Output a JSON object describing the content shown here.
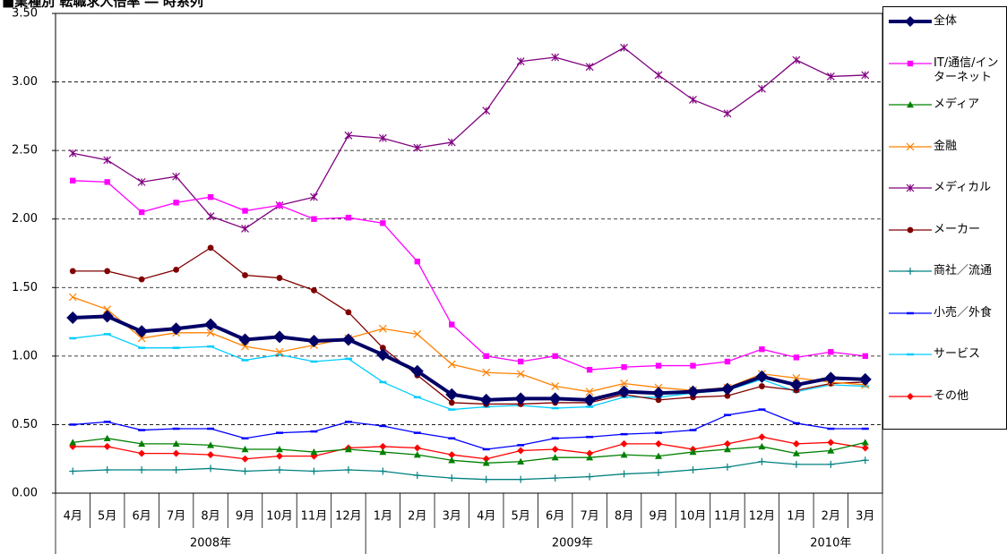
{
  "chart_data": {
    "type": "line",
    "title": "■業種別 転職求人倍率 ― 時系列",
    "categories": [
      "4月",
      "5月",
      "6月",
      "7月",
      "8月",
      "9月",
      "10月",
      "11月",
      "12月",
      "1月",
      "2月",
      "3月",
      "4月",
      "5月",
      "6月",
      "7月",
      "8月",
      "9月",
      "10月",
      "11月",
      "12月",
      "1月",
      "2月",
      "3月"
    ],
    "category_groups": [
      "2008年",
      null,
      null,
      null,
      null,
      null,
      null,
      null,
      null,
      "2009年",
      null,
      null,
      null,
      null,
      null,
      null,
      null,
      null,
      null,
      null,
      null,
      "2010年",
      null,
      null
    ],
    "ylim": [
      0,
      3.5
    ],
    "yticks": [
      {
        "value": 0,
        "label": "0.00"
      },
      {
        "value": 0.5,
        "label": "0.50"
      },
      {
        "value": 1,
        "label": "1.00"
      },
      {
        "value": 1.5,
        "label": "1.50"
      },
      {
        "value": 2,
        "label": "2.00"
      },
      {
        "value": 2.5,
        "label": "2.50"
      },
      {
        "value": 3,
        "label": "3.00"
      },
      {
        "value": 3.5,
        "label": "3.50"
      }
    ],
    "grid": true,
    "legend": "right",
    "series": [
      {
        "name": "全体",
        "color": "#000066",
        "marker": "diamond",
        "width": 4,
        "values": [
          1.28,
          1.29,
          1.18,
          1.2,
          1.23,
          1.12,
          1.14,
          1.11,
          1.12,
          1.01,
          0.89,
          0.72,
          0.68,
          0.69,
          0.69,
          0.68,
          0.74,
          0.73,
          0.74,
          0.76,
          0.85,
          0.79,
          0.84,
          0.83
        ]
      },
      {
        "name": "IT/通信/インターネット",
        "color": "#ff00ff",
        "marker": "square",
        "width": 1.3,
        "values": [
          2.28,
          2.27,
          2.05,
          2.12,
          2.16,
          2.06,
          2.1,
          2.0,
          2.01,
          1.97,
          1.69,
          1.23,
          1.0,
          0.96,
          1.0,
          0.9,
          0.92,
          0.93,
          0.93,
          0.96,
          1.05,
          0.99,
          1.03,
          1.0
        ]
      },
      {
        "name": "メディア",
        "color": "#008000",
        "marker": "triangle",
        "width": 1.3,
        "values": [
          0.37,
          0.4,
          0.36,
          0.36,
          0.35,
          0.32,
          0.32,
          0.3,
          0.32,
          0.3,
          0.28,
          0.24,
          0.22,
          0.23,
          0.26,
          0.26,
          0.28,
          0.27,
          0.3,
          0.32,
          0.34,
          0.29,
          0.31,
          0.37
        ]
      },
      {
        "name": "金融",
        "color": "#ff8000",
        "marker": "x",
        "width": 1.3,
        "values": [
          1.43,
          1.34,
          1.13,
          1.17,
          1.17,
          1.07,
          1.03,
          1.08,
          1.13,
          1.2,
          1.16,
          0.94,
          0.88,
          0.87,
          0.78,
          0.74,
          0.8,
          0.77,
          0.75,
          0.77,
          0.87,
          0.84,
          0.81,
          0.79
        ]
      },
      {
        "name": "メディカル",
        "color": "#800080",
        "marker": "star",
        "width": 1.3,
        "values": [
          2.48,
          2.43,
          2.27,
          2.31,
          2.02,
          1.93,
          2.1,
          2.16,
          2.61,
          2.59,
          2.52,
          2.56,
          2.79,
          3.15,
          3.18,
          3.11,
          3.25,
          3.05,
          2.87,
          2.77,
          2.95,
          3.16,
          3.04,
          3.05
        ]
      },
      {
        "name": "メーカー",
        "color": "#800000",
        "marker": "circle",
        "width": 1.3,
        "values": [
          1.62,
          1.62,
          1.56,
          1.63,
          1.79,
          1.59,
          1.57,
          1.48,
          1.32,
          1.06,
          0.86,
          0.66,
          0.65,
          0.65,
          0.66,
          0.66,
          0.72,
          0.68,
          0.7,
          0.71,
          0.78,
          0.75,
          0.8,
          0.81
        ]
      },
      {
        "name": "商社／流通",
        "color": "#008080",
        "marker": "plus",
        "width": 1.3,
        "values": [
          0.16,
          0.17,
          0.17,
          0.17,
          0.18,
          0.16,
          0.17,
          0.16,
          0.17,
          0.16,
          0.13,
          0.11,
          0.1,
          0.1,
          0.11,
          0.12,
          0.14,
          0.15,
          0.17,
          0.19,
          0.23,
          0.21,
          0.21,
          0.24
        ]
      },
      {
        "name": "小売／外食",
        "color": "#0000ff",
        "marker": "dash",
        "width": 1.3,
        "values": [
          0.5,
          0.52,
          0.46,
          0.47,
          0.47,
          0.4,
          0.44,
          0.45,
          0.52,
          0.49,
          0.44,
          0.4,
          0.32,
          0.35,
          0.4,
          0.41,
          0.43,
          0.44,
          0.46,
          0.57,
          0.61,
          0.51,
          0.47,
          0.47
        ]
      },
      {
        "name": "サービス",
        "color": "#00ccff",
        "marker": "dash",
        "width": 1.3,
        "values": [
          1.13,
          1.16,
          1.06,
          1.06,
          1.07,
          0.97,
          1.01,
          0.96,
          0.98,
          0.81,
          0.7,
          0.61,
          0.63,
          0.64,
          0.62,
          0.63,
          0.7,
          0.7,
          0.73,
          0.75,
          0.83,
          0.74,
          0.79,
          0.78
        ]
      },
      {
        "name": "その他",
        "color": "#ff0000",
        "marker": "diamond",
        "width": 1.3,
        "values": [
          0.34,
          0.34,
          0.29,
          0.29,
          0.28,
          0.25,
          0.27,
          0.27,
          0.33,
          0.34,
          0.33,
          0.28,
          0.25,
          0.31,
          0.32,
          0.29,
          0.36,
          0.36,
          0.32,
          0.36,
          0.41,
          0.36,
          0.37,
          0.33
        ]
      }
    ]
  }
}
